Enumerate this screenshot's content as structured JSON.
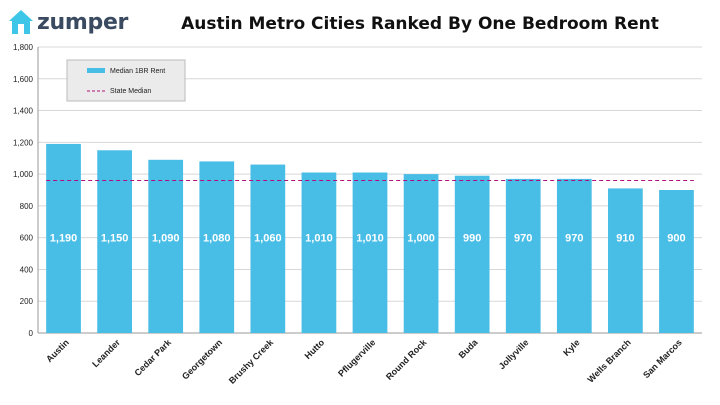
{
  "brand": {
    "name": "zumper",
    "icon": "house-icon",
    "color": "#3ec6e8"
  },
  "colors": {
    "bar": "#48bde6",
    "state_line": "#b0107a",
    "grid": "#d8d8d8",
    "legend_bg": "#ebebeb"
  },
  "chart_data": {
    "type": "bar",
    "title": "Austin Metro Cities Ranked By One Bedroom Rent",
    "categories": [
      "Austin",
      "Leander",
      "Cedar Park",
      "Georgetown",
      "Brushy Creek",
      "Hutto",
      "Pflugerville",
      "Round Rock",
      "Buda",
      "Jollyville",
      "Kyle",
      "Wells Branch",
      "San Marcos"
    ],
    "series": [
      {
        "name": "Median 1BR Rent",
        "values": [
          1190,
          1150,
          1090,
          1080,
          1060,
          1010,
          1010,
          1000,
          990,
          970,
          970,
          910,
          900
        ]
      }
    ],
    "data_labels": [
      "1,190",
      "1,150",
      "1,090",
      "1,080",
      "1,060",
      "1,010",
      "1,010",
      "1,000",
      "990",
      "970",
      "970",
      "910",
      "900"
    ],
    "reference_line": {
      "name": "State Median",
      "value": 960,
      "style": "dashed"
    },
    "ylim": [
      0,
      1800
    ],
    "yticks": [
      "0",
      "200",
      "400",
      "600",
      "800",
      "1,000",
      "1,200",
      "1,400",
      "1,600",
      "1,800"
    ],
    "grid": true,
    "legend": {
      "position": "top-left",
      "entries": [
        "Median 1BR Rent",
        "State Median"
      ]
    }
  }
}
